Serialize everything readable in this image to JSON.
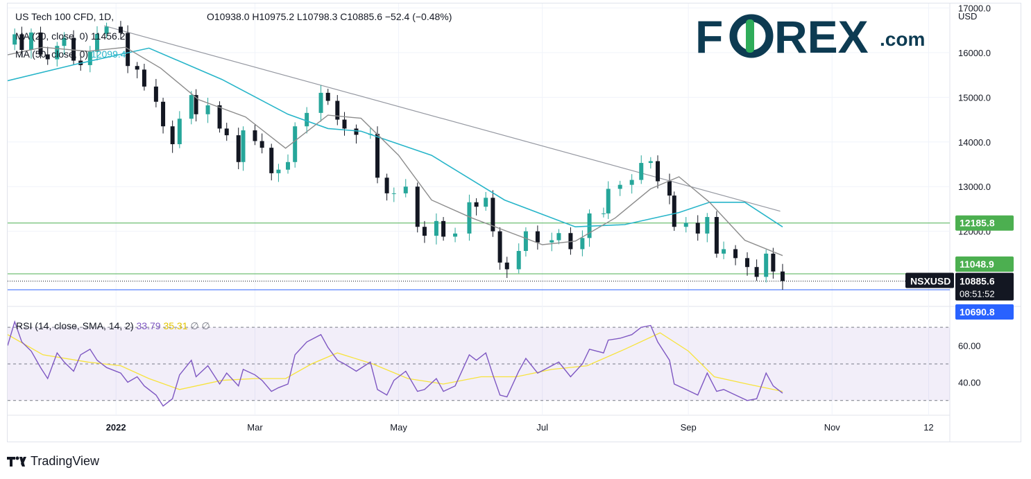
{
  "header": {
    "symbol_line": "US Tech 100 CFD, 1D,",
    "ohlc": "O10938.0  H10975.2  L10798.3  C10885.6  −52.4 (−0.48%)",
    "ma20_label": "MA (20, close, 0)",
    "ma20_value": "11456.2",
    "ma50_label": "MA (50, close, 0)",
    "ma50_value": "12099.4"
  },
  "logo": {
    "part1": "F",
    "part2": "REX",
    "suffix": ".com"
  },
  "axis": {
    "currency": "USD",
    "price_ticks": [
      "17000.0",
      "16000.0",
      "15000.0",
      "14000.0",
      "13000.0",
      "12000.0"
    ],
    "rsi_ticks": [
      "60.00",
      "40.00"
    ],
    "time_ticks": [
      "2022",
      "Mar",
      "May",
      "Jul",
      "Sep",
      "Nov",
      "12"
    ]
  },
  "price_labels": {
    "level_upper": "12185.8",
    "level_mid": "11048.9",
    "symbol": "NSXUSD",
    "last_price": "10885.6",
    "countdown": "08:51:52",
    "level_lower": "10690.8"
  },
  "rsi_header": {
    "label": "RSI (14, close, SMA, 14, 2)",
    "rsi_value": "33.79",
    "sma_value": "35.31",
    "extra": "∅  ∅"
  },
  "footer": {
    "brand": "TradingView"
  },
  "colors": {
    "up": "#26a69a",
    "down": "#131722",
    "ma20": "#8c8c8c",
    "ma50": "#27b5c9",
    "rsi": "#7e57c2",
    "rsi_sma": "#f7e33c",
    "level_green": "#4caf50",
    "level_blue": "#2962ff",
    "logo_navy": "#0d3b52",
    "logo_green": "#2fac5a"
  },
  "chart_data": {
    "type": "candlestick",
    "title": "US Tech 100 CFD, 1D",
    "ylabel": "USD",
    "ylim": [
      10350,
      17100
    ],
    "x_range": [
      "2021-11-16",
      "2022-12-21"
    ],
    "last_bar": {
      "date": "2022-10-11",
      "open": 10938.0,
      "high": 10975.2,
      "low": 10798.3,
      "close": 10885.6,
      "change": -52.4,
      "change_pct": -0.48
    },
    "horizontal_levels": [
      {
        "price": 12185.8,
        "color": "green"
      },
      {
        "price": 11048.9,
        "color": "green"
      },
      {
        "price": 10690.8,
        "color": "blue"
      }
    ],
    "trendline": {
      "from": [
        "2021-12-27",
        16600
      ],
      "to": [
        "2022-10-10",
        12450
      ]
    },
    "closes": [
      [
        "2021-11-16",
        16180
      ],
      [
        "2021-11-19",
        16410
      ],
      [
        "2021-11-22",
        16060
      ],
      [
        "2021-11-26",
        16450
      ],
      [
        "2021-11-30",
        15960
      ],
      [
        "2021-12-03",
        15850
      ],
      [
        "2021-12-07",
        16150
      ],
      [
        "2021-12-10",
        16330
      ],
      [
        "2021-12-14",
        15820
      ],
      [
        "2021-12-17",
        15720
      ],
      [
        "2021-12-21",
        16020
      ],
      [
        "2021-12-24",
        16420
      ],
      [
        "2021-12-28",
        16580
      ],
      [
        "2022-01-03",
        16440
      ],
      [
        "2022-01-06",
        15700
      ],
      [
        "2022-01-10",
        15620
      ],
      [
        "2022-01-13",
        15240
      ],
      [
        "2022-01-18",
        14900
      ],
      [
        "2022-01-21",
        14350
      ],
      [
        "2022-01-25",
        13950
      ],
      [
        "2022-01-28",
        14520
      ],
      [
        "2022-02-02",
        15050
      ],
      [
        "2022-02-04",
        14620
      ],
      [
        "2022-02-09",
        14820
      ],
      [
        "2022-02-14",
        14300
      ],
      [
        "2022-02-17",
        14150
      ],
      [
        "2022-02-22",
        13550
      ],
      [
        "2022-02-24",
        14260
      ],
      [
        "2022-03-01",
        14020
      ],
      [
        "2022-03-04",
        13870
      ],
      [
        "2022-03-08",
        13300
      ],
      [
        "2022-03-11",
        13380
      ],
      [
        "2022-03-15",
        13550
      ],
      [
        "2022-03-18",
        14350
      ],
      [
        "2022-03-23",
        14650
      ],
      [
        "2022-03-29",
        15100
      ],
      [
        "2022-04-01",
        14920
      ],
      [
        "2022-04-05",
        14500
      ],
      [
        "2022-04-08",
        14300
      ],
      [
        "2022-04-13",
        14160
      ],
      [
        "2022-04-19",
        14180
      ],
      [
        "2022-04-22",
        13200
      ],
      [
        "2022-04-26",
        12850
      ],
      [
        "2022-04-29",
        12850
      ],
      [
        "2022-05-04",
        13000
      ],
      [
        "2022-05-09",
        12100
      ],
      [
        "2022-05-12",
        11900
      ],
      [
        "2022-05-17",
        12230
      ],
      [
        "2022-05-20",
        11880
      ],
      [
        "2022-05-25",
        11950
      ],
      [
        "2022-05-31",
        12650
      ],
      [
        "2022-06-03",
        12550
      ],
      [
        "2022-06-07",
        12750
      ],
      [
        "2022-06-10",
        12000
      ],
      [
        "2022-06-13",
        11300
      ],
      [
        "2022-06-16",
        11150
      ],
      [
        "2022-06-21",
        11560
      ],
      [
        "2022-06-24",
        12000
      ],
      [
        "2022-06-29",
        11750
      ],
      [
        "2022-07-05",
        11800
      ],
      [
        "2022-07-08",
        11960
      ],
      [
        "2022-07-13",
        11600
      ],
      [
        "2022-07-18",
        11850
      ],
      [
        "2022-07-21",
        12400
      ],
      [
        "2022-07-27",
        12400
      ],
      [
        "2022-07-29",
        12950
      ],
      [
        "2022-08-03",
        13040
      ],
      [
        "2022-08-08",
        13150
      ],
      [
        "2022-08-12",
        13530
      ],
      [
        "2022-08-16",
        13570
      ],
      [
        "2022-08-19",
        13120
      ],
      [
        "2022-08-24",
        12800
      ],
      [
        "2022-08-26",
        12100
      ],
      [
        "2022-08-31",
        12190
      ],
      [
        "2022-09-05",
        11950
      ],
      [
        "2022-09-09",
        12320
      ],
      [
        "2022-09-13",
        11500
      ],
      [
        "2022-09-16",
        11600
      ],
      [
        "2022-09-21",
        11400
      ],
      [
        "2022-09-26",
        11200
      ],
      [
        "2022-09-30",
        10980
      ],
      [
        "2022-10-04",
        11500
      ],
      [
        "2022-10-07",
        11100
      ],
      [
        "2022-10-11",
        10886
      ]
    ],
    "ma20": [
      [
        "2021-11-16",
        15950
      ],
      [
        "2021-12-01",
        16120
      ],
      [
        "2021-12-20",
        16030
      ],
      [
        "2022-01-05",
        16120
      ],
      [
        "2022-01-20",
        15650
      ],
      [
        "2022-02-05",
        14950
      ],
      [
        "2022-02-25",
        14560
      ],
      [
        "2022-03-14",
        13860
      ],
      [
        "2022-04-01",
        14600
      ],
      [
        "2022-04-15",
        14530
      ],
      [
        "2022-05-01",
        13700
      ],
      [
        "2022-05-15",
        12700
      ],
      [
        "2022-06-01",
        12300
      ],
      [
        "2022-06-15",
        12020
      ],
      [
        "2022-07-01",
        11700
      ],
      [
        "2022-07-15",
        11780
      ],
      [
        "2022-08-01",
        12300
      ],
      [
        "2022-08-16",
        12950
      ],
      [
        "2022-08-28",
        13220
      ],
      [
        "2022-09-10",
        12650
      ],
      [
        "2022-09-25",
        11800
      ],
      [
        "2022-10-11",
        11456
      ]
    ],
    "ma50": [
      [
        "2021-11-16",
        15370
      ],
      [
        "2021-12-15",
        15740
      ],
      [
        "2022-01-15",
        16100
      ],
      [
        "2022-02-15",
        15400
      ],
      [
        "2022-03-15",
        14620
      ],
      [
        "2022-04-01",
        14300
      ],
      [
        "2022-04-15",
        14240
      ],
      [
        "2022-05-15",
        13700
      ],
      [
        "2022-06-15",
        12700
      ],
      [
        "2022-07-15",
        12100
      ],
      [
        "2022-08-05",
        12150
      ],
      [
        "2022-08-28",
        12420
      ],
      [
        "2022-09-10",
        12650
      ],
      [
        "2022-09-25",
        12650
      ],
      [
        "2022-10-11",
        12099
      ]
    ],
    "rsi": {
      "ylim": [
        25,
        78
      ],
      "bands": [
        30,
        50,
        70
      ],
      "rsi": [
        [
          "2021-11-16",
          60
        ],
        [
          "2021-11-19",
          73
        ],
        [
          "2021-11-22",
          62
        ],
        [
          "2021-11-26",
          57
        ],
        [
          "2021-11-30",
          48
        ],
        [
          "2021-12-03",
          42
        ],
        [
          "2021-12-07",
          56
        ],
        [
          "2021-12-10",
          51
        ],
        [
          "2021-12-14",
          46
        ],
        [
          "2021-12-17",
          55
        ],
        [
          "2021-12-21",
          58
        ],
        [
          "2021-12-24",
          52
        ],
        [
          "2021-12-28",
          48
        ],
        [
          "2022-01-03",
          45
        ],
        [
          "2022-01-06",
          40
        ],
        [
          "2022-01-10",
          43
        ],
        [
          "2022-01-13",
          38
        ],
        [
          "2022-01-18",
          33
        ],
        [
          "2022-01-21",
          27
        ],
        [
          "2022-01-25",
          31
        ],
        [
          "2022-01-28",
          44
        ],
        [
          "2022-02-02",
          52
        ],
        [
          "2022-02-04",
          43
        ],
        [
          "2022-02-09",
          49
        ],
        [
          "2022-02-14",
          39
        ],
        [
          "2022-02-17",
          45
        ],
        [
          "2022-02-22",
          38
        ],
        [
          "2022-02-24",
          47
        ],
        [
          "2022-03-01",
          44
        ],
        [
          "2022-03-04",
          41
        ],
        [
          "2022-03-08",
          35
        ],
        [
          "2022-03-11",
          37
        ],
        [
          "2022-03-15",
          39
        ],
        [
          "2022-03-18",
          55
        ],
        [
          "2022-03-23",
          62
        ],
        [
          "2022-03-29",
          66
        ],
        [
          "2022-04-01",
          59
        ],
        [
          "2022-04-05",
          52
        ],
        [
          "2022-04-08",
          50
        ],
        [
          "2022-04-13",
          46
        ],
        [
          "2022-04-19",
          51
        ],
        [
          "2022-04-22",
          36
        ],
        [
          "2022-04-26",
          33
        ],
        [
          "2022-04-29",
          41
        ],
        [
          "2022-05-04",
          46
        ],
        [
          "2022-05-09",
          35
        ],
        [
          "2022-05-12",
          36
        ],
        [
          "2022-05-17",
          42
        ],
        [
          "2022-05-20",
          35
        ],
        [
          "2022-05-25",
          38
        ],
        [
          "2022-05-31",
          55
        ],
        [
          "2022-06-03",
          52
        ],
        [
          "2022-06-07",
          56
        ],
        [
          "2022-06-10",
          44
        ],
        [
          "2022-06-13",
          33
        ],
        [
          "2022-06-16",
          32
        ],
        [
          "2022-06-21",
          46
        ],
        [
          "2022-06-24",
          53
        ],
        [
          "2022-06-29",
          45
        ],
        [
          "2022-07-05",
          49
        ],
        [
          "2022-07-08",
          51
        ],
        [
          "2022-07-13",
          43
        ],
        [
          "2022-07-18",
          50
        ],
        [
          "2022-07-21",
          58
        ],
        [
          "2022-07-27",
          56
        ],
        [
          "2022-07-29",
          63
        ],
        [
          "2022-08-03",
          64
        ],
        [
          "2022-08-08",
          66
        ],
        [
          "2022-08-12",
          70
        ],
        [
          "2022-08-16",
          71
        ],
        [
          "2022-08-19",
          62
        ],
        [
          "2022-08-24",
          52
        ],
        [
          "2022-08-26",
          39
        ],
        [
          "2022-08-31",
          36
        ],
        [
          "2022-09-05",
          33
        ],
        [
          "2022-09-09",
          45
        ],
        [
          "2022-09-13",
          35
        ],
        [
          "2022-09-16",
          36
        ],
        [
          "2022-09-21",
          33
        ],
        [
          "2022-09-26",
          30
        ],
        [
          "2022-09-30",
          31
        ],
        [
          "2022-10-04",
          45
        ],
        [
          "2022-10-07",
          38
        ],
        [
          "2022-10-11",
          34
        ]
      ],
      "sma": [
        [
          "2021-11-16",
          66
        ],
        [
          "2021-12-01",
          55
        ],
        [
          "2021-12-20",
          51
        ],
        [
          "2022-01-03",
          49
        ],
        [
          "2022-01-15",
          42
        ],
        [
          "2022-01-28",
          36
        ],
        [
          "2022-02-15",
          41
        ],
        [
          "2022-03-01",
          42
        ],
        [
          "2022-03-14",
          42
        ],
        [
          "2022-03-25",
          50
        ],
        [
          "2022-04-05",
          56
        ],
        [
          "2022-04-20",
          50
        ],
        [
          "2022-05-05",
          42
        ],
        [
          "2022-05-20",
          39
        ],
        [
          "2022-06-05",
          43
        ],
        [
          "2022-06-20",
          43
        ],
        [
          "2022-07-05",
          47
        ],
        [
          "2022-07-20",
          49
        ],
        [
          "2022-08-05",
          58
        ],
        [
          "2022-08-20",
          67
        ],
        [
          "2022-09-01",
          57
        ],
        [
          "2022-09-12",
          43
        ],
        [
          "2022-09-26",
          39
        ],
        [
          "2022-10-11",
          35
        ]
      ]
    }
  }
}
